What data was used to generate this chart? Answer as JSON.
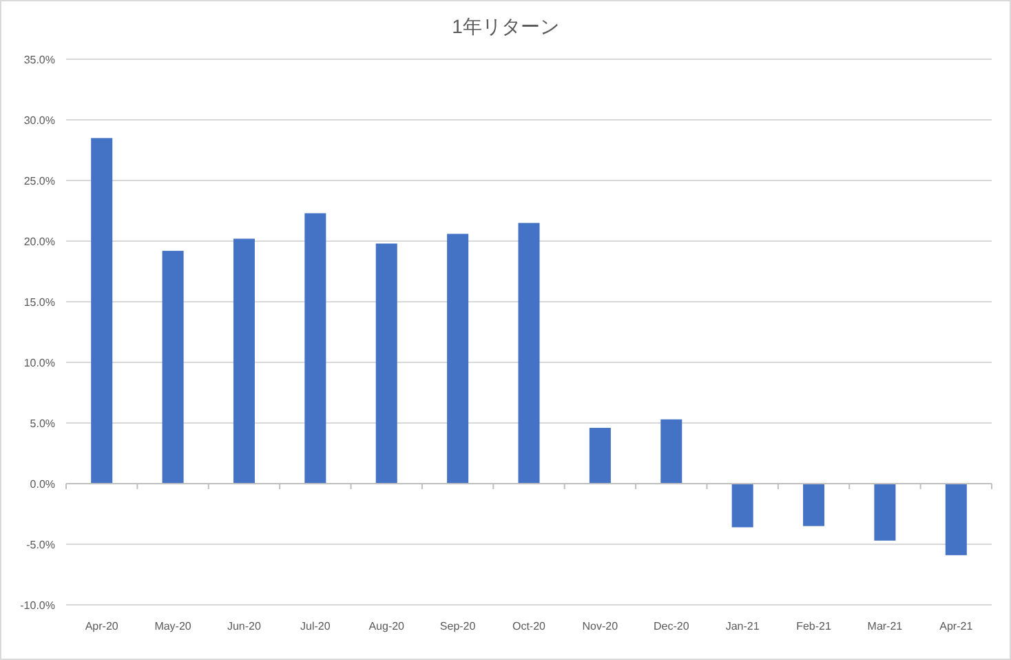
{
  "chart_data": {
    "type": "bar",
    "title": "1年リターン",
    "categories": [
      "Apr-20",
      "May-20",
      "Jun-20",
      "Jul-20",
      "Aug-20",
      "Sep-20",
      "Oct-20",
      "Nov-20",
      "Dec-20",
      "Jan-21",
      "Feb-21",
      "Mar-21",
      "Apr-21"
    ],
    "values": [
      28.5,
      19.2,
      20.2,
      22.3,
      19.8,
      20.6,
      21.5,
      4.6,
      5.3,
      -3.6,
      -3.5,
      -4.7,
      -5.9
    ],
    "color": "#4472c4",
    "ylim": [
      -10,
      35
    ],
    "yticks": [
      {
        "value": -10,
        "label": "-10.0%"
      },
      {
        "value": -5,
        "label": "-5.0%"
      },
      {
        "value": 0,
        "label": "0.0%"
      },
      {
        "value": 5,
        "label": "5.0%"
      },
      {
        "value": 10,
        "label": "10.0%"
      },
      {
        "value": 15,
        "label": "15.0%"
      },
      {
        "value": 20,
        "label": "20.0%"
      },
      {
        "value": 25,
        "label": "25.0%"
      },
      {
        "value": 30,
        "label": "30.0%"
      },
      {
        "value": 35,
        "label": "35.0%"
      }
    ],
    "grid": "y"
  }
}
